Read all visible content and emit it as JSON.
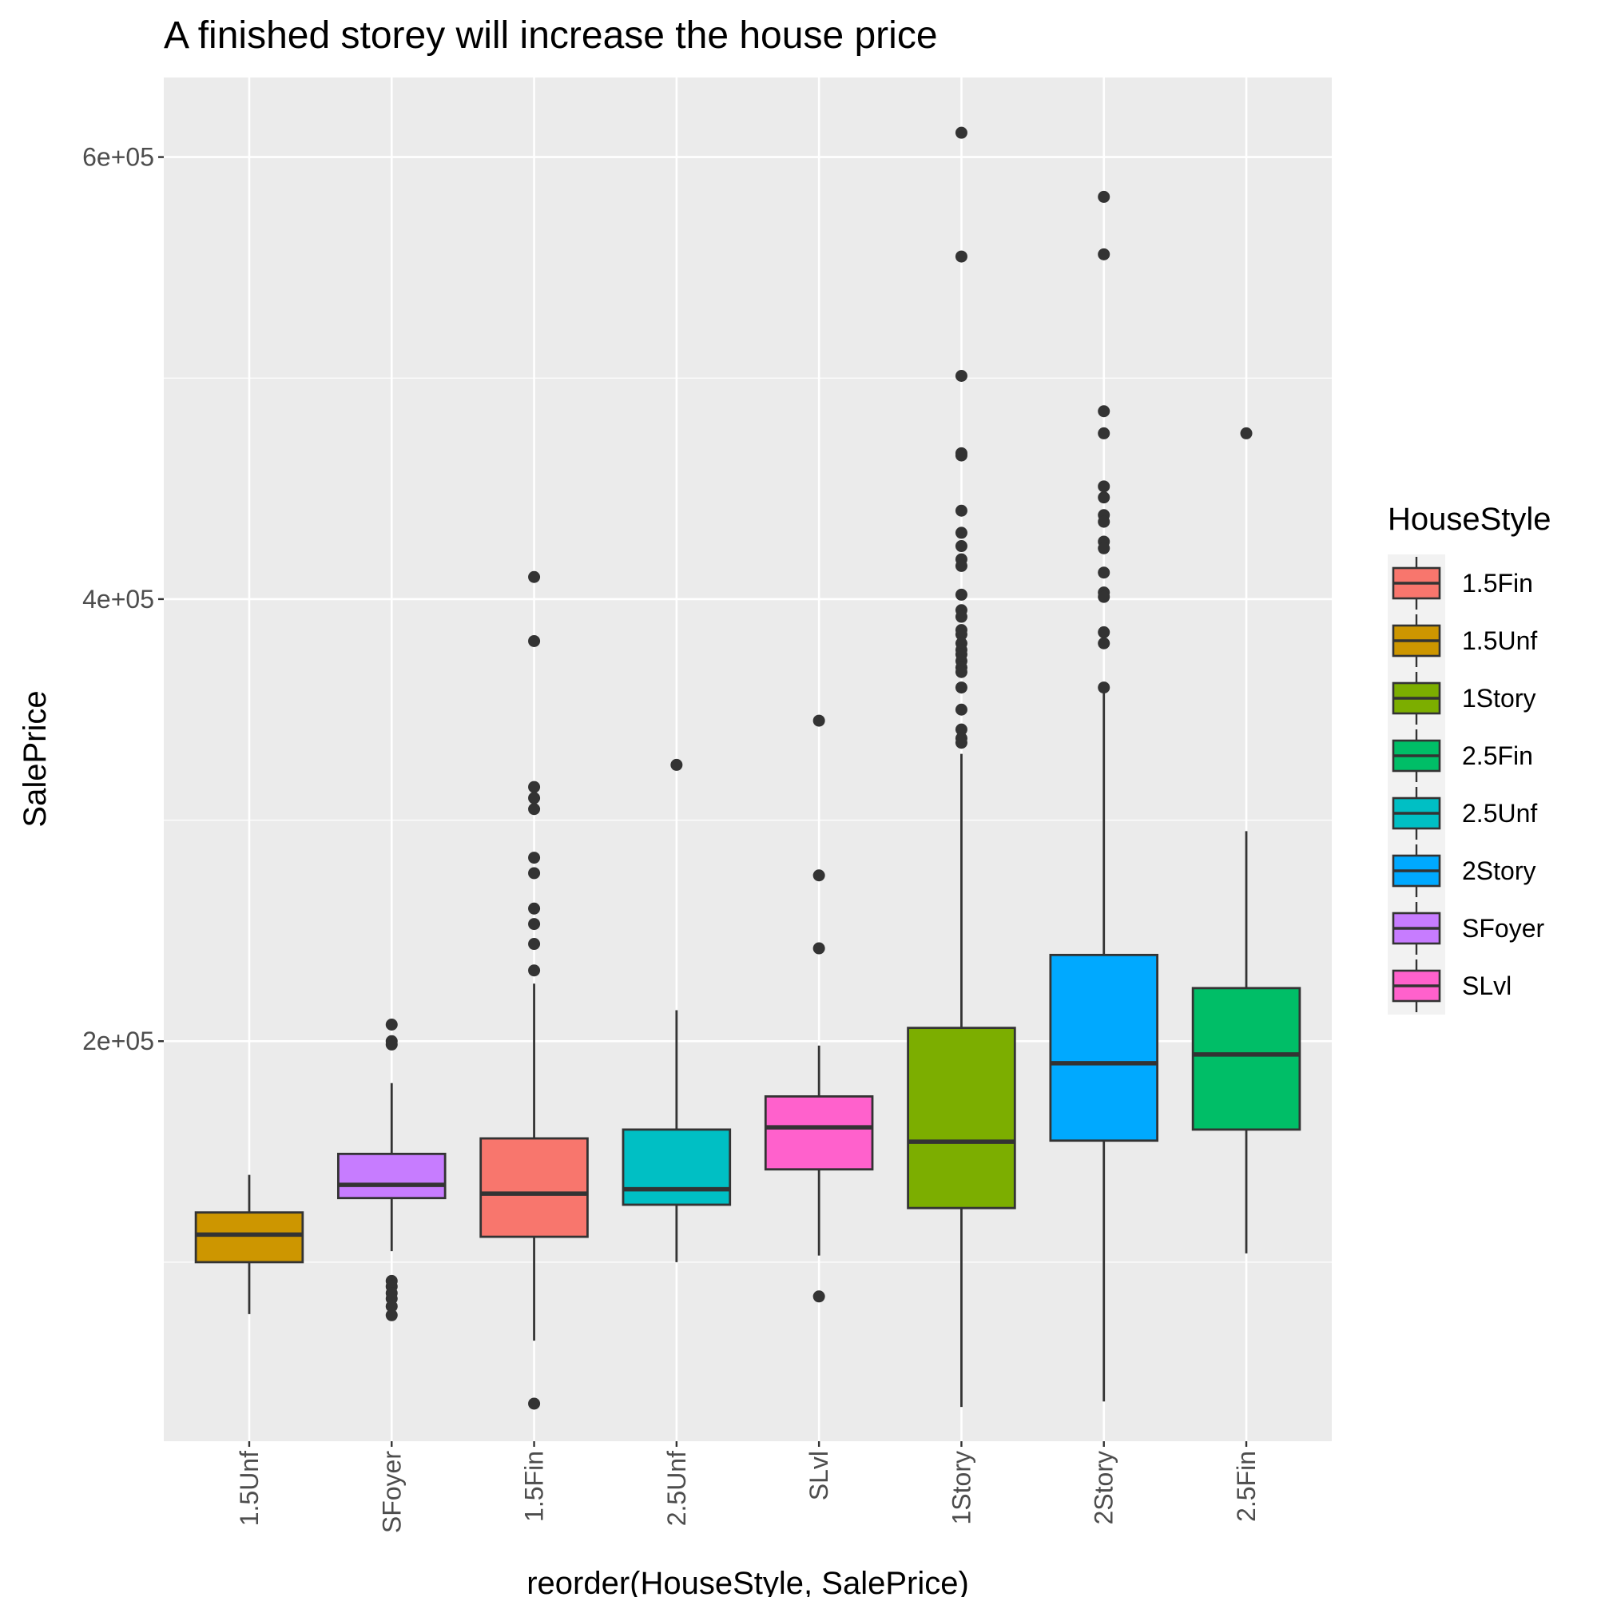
{
  "chart_data": {
    "type": "boxplot",
    "title": "A finished storey will increase the house price",
    "xlabel": "reorder(HouseStyle, SalePrice)",
    "ylabel": "SalePrice",
    "ylim": [
      19000,
      636000
    ],
    "yticks": [
      200000,
      400000,
      600000
    ],
    "ytick_labels": [
      "2e+05",
      "4e+05",
      "6e+05"
    ],
    "grid": true,
    "legend_title": "HouseStyle",
    "legend_position": "right",
    "categories": [
      "1.5Unf",
      "SFoyer",
      "1.5Fin",
      "2.5Unf",
      "SLvl",
      "1Story",
      "2Story",
      "2.5Fin"
    ],
    "boxes": [
      {
        "name": "1.5Unf",
        "color": "#CD9600",
        "whisker_low": 76500,
        "q1": 100000,
        "median": 112500,
        "q3": 122500,
        "whisker_high": 139500,
        "outliers": []
      },
      {
        "name": "SFoyer",
        "color": "#C77CFF",
        "whisker_low": 105000,
        "q1": 129000,
        "median": 135000,
        "q3": 149000,
        "whisker_high": 181000,
        "outliers": [
          207500,
          200000,
          198500,
          91500,
          89000,
          86000,
          83500,
          80000,
          76000
        ]
      },
      {
        "name": "1.5Fin",
        "color": "#F8766D",
        "whisker_low": 64500,
        "q1": 111500,
        "median": 131000,
        "q3": 156000,
        "whisker_high": 226000,
        "outliers": [
          410000,
          381000,
          315000,
          310000,
          305000,
          283000,
          276000,
          260000,
          253000,
          244000,
          232000,
          36000
        ]
      },
      {
        "name": "2.5Unf",
        "color": "#00BFC4",
        "whisker_low": 100000,
        "q1": 126000,
        "median": 133000,
        "q3": 160000,
        "whisker_high": 214000,
        "outliers": [
          325000
        ]
      },
      {
        "name": "SLvl",
        "color": "#FF61CC",
        "whisker_low": 103000,
        "q1": 142000,
        "median": 161000,
        "q3": 175000,
        "whisker_high": 198000,
        "outliers": [
          345000,
          275000,
          242000,
          84500
        ]
      },
      {
        "name": "1Story",
        "color": "#7CAE00",
        "whisker_low": 34500,
        "q1": 124500,
        "median": 154500,
        "q3": 206000,
        "whisker_high": 330000,
        "outliers": [
          611000,
          555000,
          501000,
          466000,
          465000,
          440000,
          430000,
          424000,
          418000,
          415000,
          402000,
          395000,
          392000,
          386000,
          384000,
          380000,
          377000,
          375000,
          372000,
          369000,
          367000,
          360000,
          350000,
          341000,
          337000,
          335000
        ]
      },
      {
        "name": "2Story",
        "color": "#00A9FF",
        "whisker_low": 37000,
        "q1": 155000,
        "median": 190000,
        "q3": 239000,
        "whisker_high": 360000,
        "outliers": [
          582000,
          556000,
          485000,
          475000,
          451000,
          446000,
          438000,
          435000,
          426000,
          423000,
          412000,
          403000,
          401000,
          385000,
          380000,
          360000
        ]
      },
      {
        "name": "2.5Fin",
        "color": "#00BE67",
        "whisker_low": 104000,
        "q1": 160000,
        "median": 194000,
        "q3": 224000,
        "whisker_high": 295000,
        "outliers": [
          475000
        ]
      }
    ],
    "legend": [
      {
        "label": "1.5Fin",
        "color": "#F8766D"
      },
      {
        "label": "1.5Unf",
        "color": "#CD9600"
      },
      {
        "label": "1Story",
        "color": "#7CAE00"
      },
      {
        "label": "2.5Fin",
        "color": "#00BE67"
      },
      {
        "label": "2.5Unf",
        "color": "#00BFC4"
      },
      {
        "label": "2Story",
        "color": "#00A9FF"
      },
      {
        "label": "SFoyer",
        "color": "#C77CFF"
      },
      {
        "label": "SLvl",
        "color": "#FF61CC"
      }
    ]
  }
}
